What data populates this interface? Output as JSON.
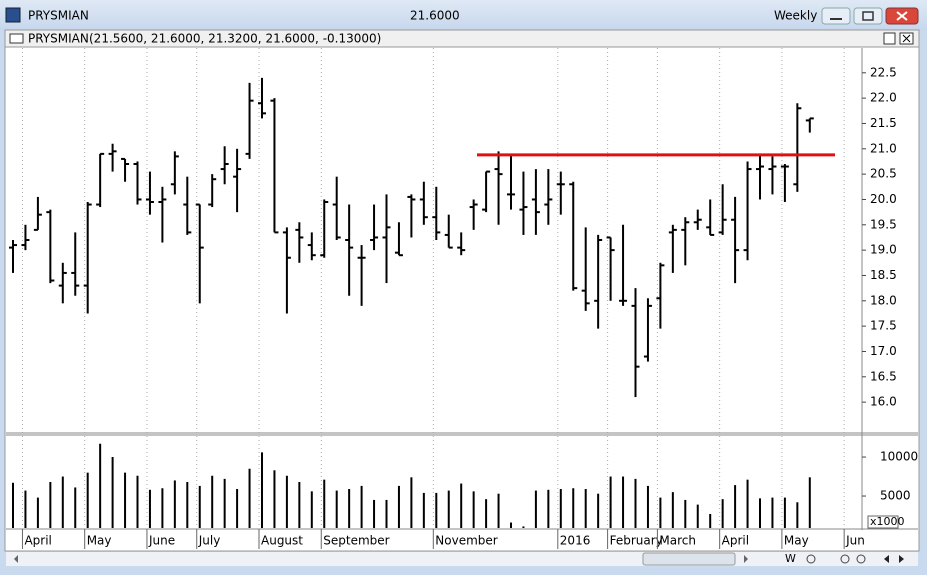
{
  "window": {
    "title": "PRYSMIAN",
    "last_price": "21.6000",
    "period": "Weekly"
  },
  "chart_header": {
    "symbol": "PRYSMIAN",
    "quote": "(21.5600, 21.6000, 21.3200, 21.6000, -0.13000)"
  },
  "toolbar": {
    "period_button": "W"
  },
  "chart_data": {
    "type": "ohlc",
    "categories": [
      null,
      "April",
      null,
      null,
      null,
      null,
      "May",
      null,
      null,
      null,
      null,
      "June",
      null,
      null,
      null,
      "July",
      null,
      null,
      null,
      null,
      "August",
      null,
      null,
      null,
      null,
      "September",
      null,
      null,
      null,
      null,
      null,
      null,
      null,
      null,
      "November",
      null,
      null,
      null,
      null,
      null,
      null,
      null,
      null,
      null,
      "2016",
      null,
      null,
      null,
      "February",
      null,
      null,
      null,
      "March",
      null,
      null,
      null,
      null,
      "April",
      null,
      null,
      null,
      null,
      "May",
      null,
      null,
      null,
      null,
      "Jun"
    ],
    "series": [
      {
        "name": "PRYSMIAN",
        "color": "#000000",
        "open": [
          19.05,
          19.1,
          19.4,
          19.75,
          18.3,
          18.55,
          18.3,
          19.9,
          20.9,
          20.8,
          20.7,
          20.0,
          19.95,
          20.3,
          19.9,
          19.9,
          19.9,
          20.6,
          20.45,
          20.9,
          21.9,
          21.95,
          19.35,
          19.4,
          19.1,
          18.9,
          19.9,
          19.2,
          18.85,
          19.2,
          19.25,
          18.95,
          20.05,
          20.0,
          19.65,
          19.3,
          19.05,
          19.85,
          19.8,
          20.6,
          20.1,
          19.8,
          20.0,
          19.9,
          20.3,
          20.3,
          18.2,
          18.0,
          19.25,
          18.0,
          17.9,
          16.9,
          18.05,
          19.35,
          19.4,
          19.55,
          19.45,
          19.35,
          19.6,
          19.0,
          20.6,
          20.6,
          20.65,
          20.3,
          21.56,
          null,
          null,
          null
        ],
        "high": [
          19.2,
          19.5,
          20.05,
          19.8,
          18.75,
          19.35,
          19.95,
          20.9,
          21.1,
          20.8,
          20.75,
          20.55,
          20.25,
          20.95,
          20.45,
          19.9,
          20.5,
          21.05,
          21.0,
          22.3,
          22.4,
          22.0,
          19.45,
          19.55,
          19.35,
          20.0,
          20.45,
          19.9,
          19.1,
          19.9,
          20.1,
          19.55,
          20.1,
          20.35,
          20.25,
          19.7,
          19.35,
          20.0,
          20.55,
          20.95,
          20.9,
          20.55,
          20.6,
          20.6,
          20.55,
          20.35,
          19.45,
          19.3,
          19.25,
          19.5,
          18.25,
          18.05,
          18.75,
          19.5,
          19.65,
          19.8,
          20.0,
          20.3,
          20.05,
          20.75,
          20.9,
          20.85,
          20.7,
          21.9,
          21.6,
          null,
          null,
          null
        ],
        "low": [
          18.55,
          19.0,
          19.4,
          18.35,
          17.95,
          18.1,
          17.75,
          19.85,
          20.55,
          20.35,
          19.9,
          19.7,
          19.15,
          20.1,
          19.3,
          17.95,
          19.85,
          20.3,
          19.75,
          20.8,
          21.6,
          19.35,
          17.75,
          18.75,
          18.8,
          18.85,
          19.2,
          18.1,
          17.9,
          19.0,
          18.35,
          18.9,
          19.25,
          19.5,
          19.2,
          19.05,
          18.9,
          19.4,
          19.75,
          19.5,
          19.8,
          19.3,
          19.3,
          19.5,
          19.7,
          18.2,
          17.8,
          17.45,
          18.0,
          17.9,
          16.1,
          16.8,
          17.45,
          18.55,
          18.7,
          19.4,
          19.3,
          19.3,
          18.35,
          18.8,
          20.0,
          20.1,
          19.95,
          20.15,
          21.32,
          null,
          null,
          null
        ],
        "close": [
          19.1,
          19.2,
          19.7,
          18.4,
          18.55,
          18.3,
          19.9,
          20.9,
          20.95,
          20.7,
          20.0,
          19.95,
          20.0,
          20.85,
          19.35,
          19.05,
          20.4,
          20.7,
          20.6,
          21.95,
          21.7,
          19.35,
          18.85,
          19.25,
          18.9,
          19.95,
          19.25,
          19.05,
          18.85,
          19.25,
          19.45,
          18.9,
          20.0,
          19.65,
          19.35,
          19.05,
          19.0,
          19.9,
          20.55,
          20.5,
          20.1,
          19.85,
          19.75,
          20.0,
          20.3,
          18.25,
          17.95,
          19.2,
          19.0,
          18.0,
          16.7,
          17.9,
          18.7,
          19.4,
          19.55,
          19.6,
          19.3,
          19.6,
          19.0,
          20.6,
          20.65,
          20.65,
          20.65,
          21.8,
          21.6,
          null,
          null,
          null
        ]
      }
    ],
    "ylim": [
      15.45,
      22.95
    ],
    "yticks": [
      {
        "value": 16,
        "label": "16.0"
      },
      {
        "value": 16.5,
        "label": "16.5"
      },
      {
        "value": 17,
        "label": "17.0"
      },
      {
        "value": 17.5,
        "label": "17.5"
      },
      {
        "value": 18,
        "label": "18.0"
      },
      {
        "value": 18.5,
        "label": "18.5"
      },
      {
        "value": 19,
        "label": "19.0"
      },
      {
        "value": 19.5,
        "label": "19.5"
      },
      {
        "value": 20,
        "label": "20.0"
      },
      {
        "value": 20.5,
        "label": "20.5"
      },
      {
        "value": 21,
        "label": "21.0"
      },
      {
        "value": 21.5,
        "label": "21.5"
      },
      {
        "value": 22,
        "label": "22.0"
      },
      {
        "value": 22.5,
        "label": "22.5"
      }
    ],
    "resistance_line": {
      "value": 20.88,
      "color": "#e01010"
    },
    "volume": {
      "color": "#000000",
      "values": [
        6700,
        5700,
        4800,
        6800,
        7500,
        6100,
        8000,
        11700,
        10000,
        8000,
        7600,
        5800,
        6000,
        7000,
        6800,
        6300,
        7600,
        7200,
        5900,
        8500,
        10600,
        8300,
        7600,
        6800,
        5600,
        7100,
        5700,
        5900,
        6300,
        4500,
        4500,
        6300,
        7400,
        5400,
        5400,
        5700,
        6600,
        5600,
        4600,
        5300,
        1600,
        1100,
        5700,
        5800,
        5900,
        6000,
        5900,
        5300,
        7500,
        7500,
        7200,
        6300,
        4800,
        5500,
        4500,
        3900,
        2700,
        4600,
        6400,
        7100,
        4700,
        4800,
        4800,
        4200,
        7400,
        null,
        null,
        null
      ],
      "ylim": [
        900,
        12700
      ],
      "yticks": [
        5000,
        10000
      ],
      "unit_label": "x1000"
    }
  }
}
